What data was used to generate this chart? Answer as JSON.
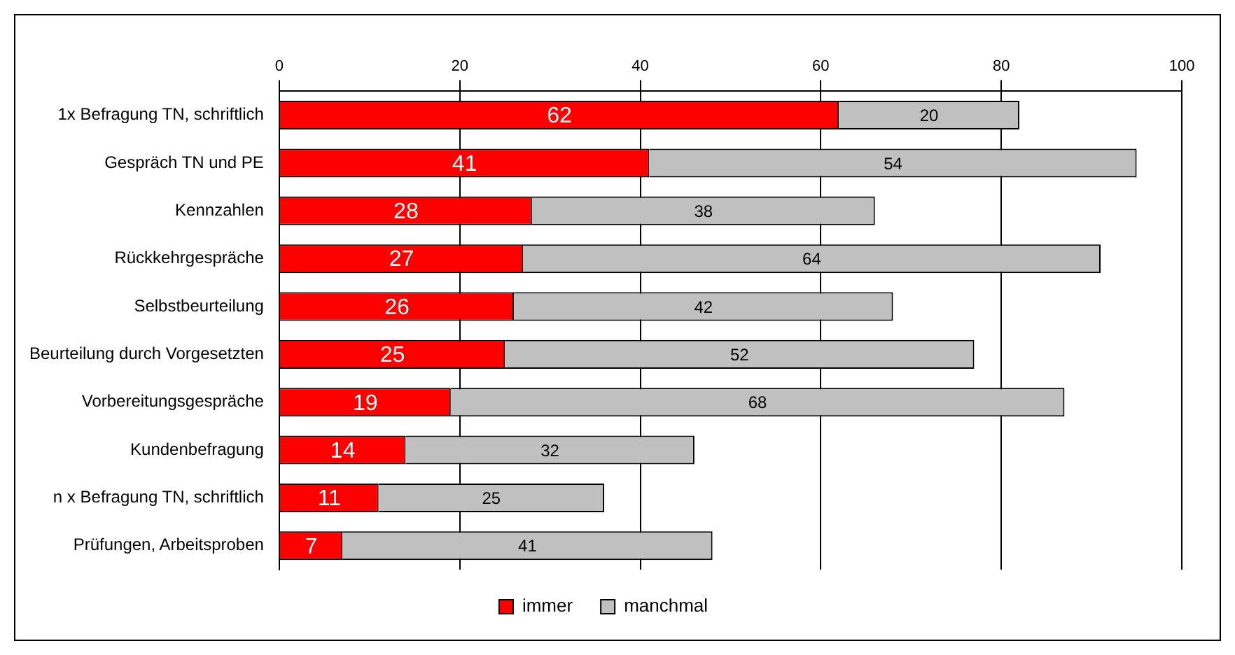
{
  "chart_data": {
    "type": "bar",
    "orientation": "horizontal",
    "stacked": true,
    "categories": [
      "1x Befragung TN, schriftlich",
      "Gespräch TN und PE",
      "Kennzahlen",
      "Rückkehrgespräche",
      "Selbstbeurteilung",
      "Beurteilung durch Vorgesetzten",
      "Vorbereitungsgespräche",
      "Kundenbefragung",
      "n x Befragung TN, schriftlich",
      "Prüfungen, Arbeitsproben"
    ],
    "series": [
      {
        "name": "immer",
        "color": "#ff0000",
        "values": [
          62,
          41,
          28,
          27,
          26,
          25,
          19,
          14,
          11,
          7
        ]
      },
      {
        "name": "manchmal",
        "color": "#c0c0c0",
        "values": [
          20,
          54,
          38,
          64,
          42,
          52,
          68,
          32,
          25,
          41
        ]
      }
    ],
    "xlim": [
      0,
      100
    ],
    "xticks": [
      0,
      20,
      40,
      60,
      80,
      100
    ],
    "grid": "x",
    "legend": "bottom",
    "data_labels": true
  }
}
